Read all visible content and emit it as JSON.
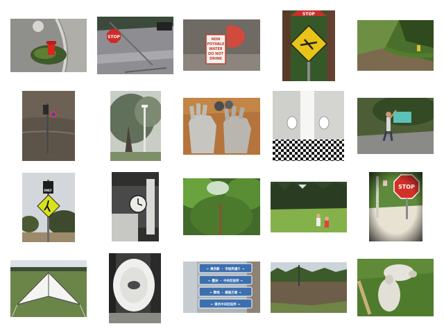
{
  "gallery": {
    "thumbnails": [
      {
        "subject": "fire-hydrant-in-planter-beside-curb"
      },
      {
        "subject": "stop-sign-on-tilted-pole-street"
      },
      {
        "subject": "non-potable-water-sign-with-red-object"
      },
      {
        "subject": "yellow-diamond-warning-sign-with-stop-sign"
      },
      {
        "subject": "grassy-hillside-with-small-hydrant"
      },
      {
        "subject": "traffic-signal-in-floodwater"
      },
      {
        "subject": "bare-tree-and-lamp-post"
      },
      {
        "subject": "work-gloves-and-metal-balls-on-table"
      },
      {
        "subject": "restroom-with-checkered-floor"
      },
      {
        "subject": "person-throwing-outdoors"
      },
      {
        "subject": "pedestrian-crossing-sign-with-only-sign"
      },
      {
        "subject": "wall-clock-in-room"
      },
      {
        "subject": "green-trees-and-post"
      },
      {
        "subject": "people-flying-kite-in-park"
      },
      {
        "subject": "stop-sign-through-vignette"
      },
      {
        "subject": "white-delta-kite-on-grass"
      },
      {
        "subject": "white-rolled-object-on-wall"
      },
      {
        "subject": "blue-direction-signs-with-japanese-text"
      },
      {
        "subject": "flooded-lake-with-trees"
      },
      {
        "subject": "sheep-lying-on-grass-near-post"
      }
    ],
    "sign_text": {
      "stop": "STOP",
      "only": "ONLY",
      "non_potable": [
        "NON",
        "POTABLE",
        "WATER",
        "DO NOT",
        "DRINK"
      ],
      "jp_signs": [
        "← 東京駅 ・ 市役所通り →",
        "← 豊洲 ・ 中央区役所 →",
        "← 築地 ・ 銀座方面 →",
        "← 東京中央区役所 →"
      ]
    }
  }
}
